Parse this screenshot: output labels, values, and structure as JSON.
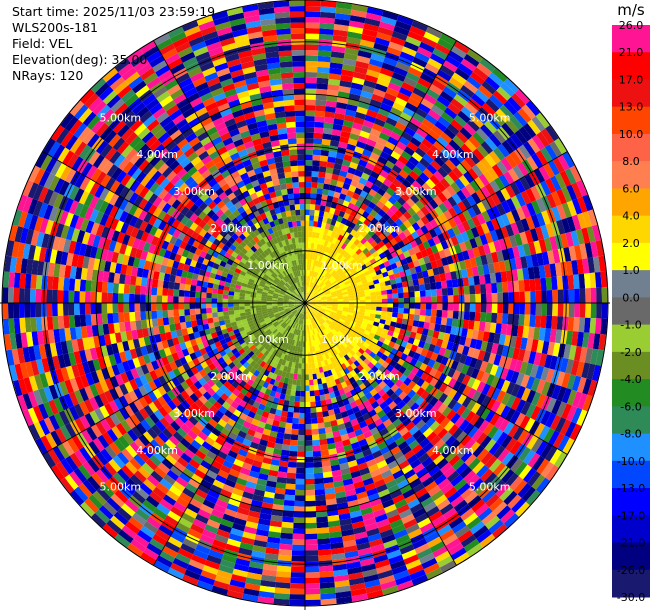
{
  "info": {
    "start_time": "Start time: 2025/11/03 23:59:19",
    "instrument": "WLS200s-181",
    "field": "Field: VEL",
    "elevation": "Elevation(deg): 35.00",
    "nrays": "NRays: 120"
  },
  "chart_data": {
    "type": "heatmap",
    "projection": "polar PPI",
    "field": "VEL",
    "nrays": 120,
    "range_rings": [
      {
        "label": "1.00km",
        "value": 1.0
      },
      {
        "label": "2.00km",
        "value": 2.0
      },
      {
        "label": "3.00km",
        "value": 3.0
      },
      {
        "label": "4.00km",
        "value": 4.0
      },
      {
        "label": "5.00km",
        "value": 5.0
      }
    ],
    "max_range_km": 5.8,
    "pattern": {
      "near_range_km": 1.9,
      "near_west_velocity_range": [
        -4.0,
        -1.0
      ],
      "near_east_velocity_range": [
        1.0,
        4.0
      ],
      "far_field": "noisy, velocities spanning -30.0 to 26.0"
    },
    "colorbar": {
      "unit": "m/s",
      "ticks": [
        "26.0",
        "21.0",
        "17.0",
        "13.0",
        "10.0",
        "8.0",
        "6.0",
        "4.0",
        "2.0",
        "1.0",
        "0.0",
        "-1.0",
        "-2.0",
        "-4.0",
        "-6.0",
        "-8.0",
        "-10.0",
        "-13.0",
        "-17.0",
        "-21.0",
        "-26.0",
        "-30.0"
      ],
      "colors": [
        "#ff1493",
        "#ff0000",
        "#ee1111",
        "#ff4500",
        "#ff6347",
        "#ff7f50",
        "#ffa500",
        "#ffd700",
        "#ffff00",
        "#708090",
        "#696969",
        "#9acd32",
        "#6b8e23",
        "#228b22",
        "#2e8b57",
        "#1e90ff",
        "#0047ff",
        "#0000ff",
        "#0000cd",
        "#000080",
        "#191970",
        "#191970"
      ]
    }
  }
}
